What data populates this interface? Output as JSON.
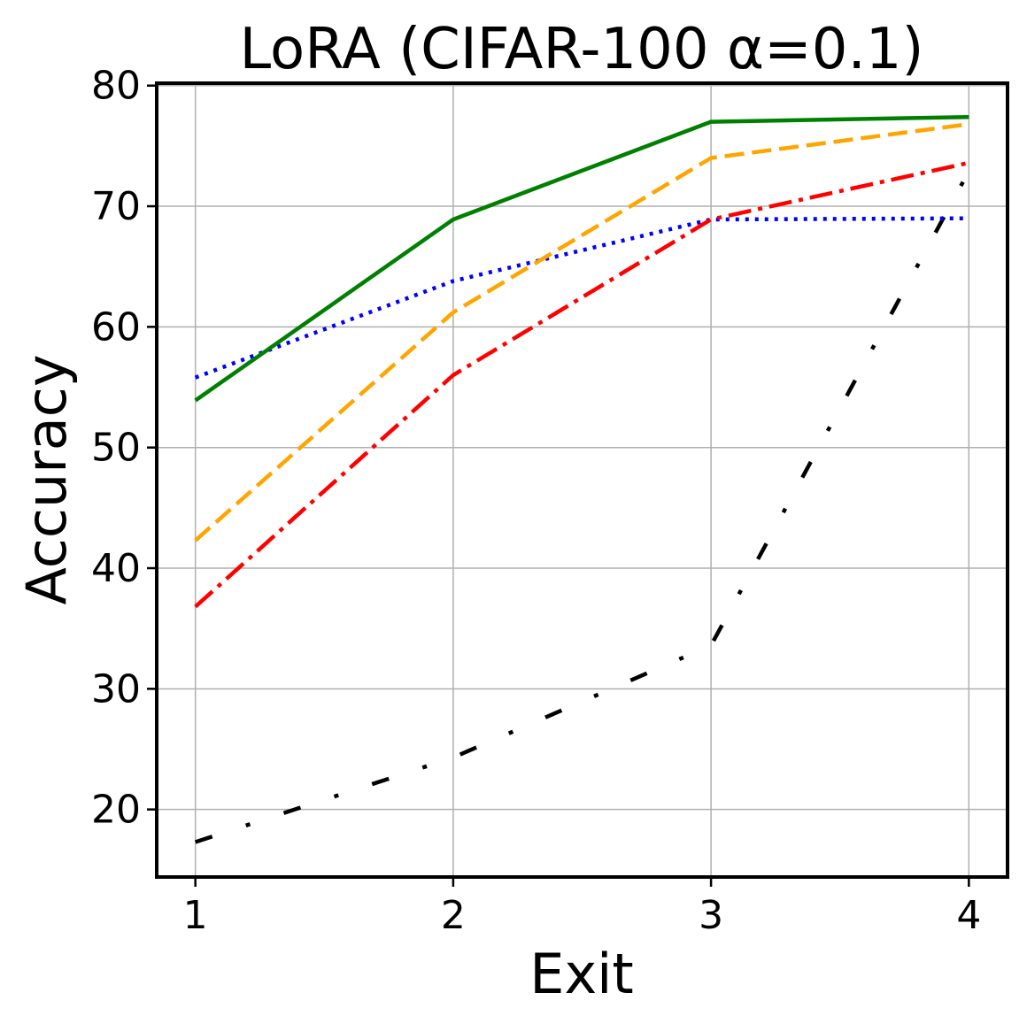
{
  "chart_data": {
    "type": "line",
    "title": "LoRA (CIFAR-100 α=0.1)",
    "xlabel": "Exit",
    "ylabel": "Accuracy",
    "x": [
      1,
      2,
      3,
      4
    ],
    "xlim": [
      0.85,
      4.15
    ],
    "ylim": [
      14.4,
      80.2
    ],
    "xticks": [
      "1",
      "2",
      "3",
      "4"
    ],
    "yticks": [
      "20",
      "30",
      "40",
      "50",
      "60",
      "70",
      "80"
    ],
    "grid": true,
    "legend": "none",
    "series": [
      {
        "values": [
          17.3,
          24.3,
          33.6,
          72.9
        ],
        "color": "#000000",
        "style": "loose-dashdot"
      },
      {
        "values": [
          55.8,
          63.8,
          68.9,
          69.0
        ],
        "color": "#0000ff",
        "style": "dotted"
      },
      {
        "values": [
          36.8,
          56.0,
          68.9,
          73.6
        ],
        "color": "#ff0000",
        "style": "dashdot"
      },
      {
        "values": [
          42.3,
          61.2,
          74.0,
          76.8
        ],
        "color": "#ffa500",
        "style": "dashed"
      },
      {
        "values": [
          53.9,
          68.9,
          77.0,
          77.4
        ],
        "color": "#008000",
        "style": "solid"
      }
    ]
  }
}
